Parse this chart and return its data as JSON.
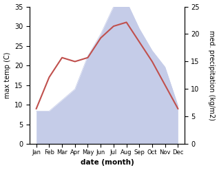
{
  "months": [
    "Jan",
    "Feb",
    "Mar",
    "Apr",
    "May",
    "Jun",
    "Jul",
    "Aug",
    "Sep",
    "Oct",
    "Nov",
    "Dec"
  ],
  "month_x": [
    0,
    1,
    2,
    3,
    4,
    5,
    6,
    7,
    8,
    9,
    10,
    11
  ],
  "temperature": [
    9,
    17,
    22,
    21,
    22,
    27,
    30,
    31,
    26,
    21,
    15,
    9
  ],
  "precipitation": [
    6,
    6,
    8,
    10,
    16,
    20,
    25,
    26,
    21,
    17,
    14,
    7
  ],
  "temp_color": "#c0504d",
  "precip_fill_color": "#c5cce8",
  "temp_ylim": [
    0,
    35
  ],
  "precip_ylim": [
    0,
    25
  ],
  "temp_yticks": [
    0,
    5,
    10,
    15,
    20,
    25,
    30,
    35
  ],
  "precip_yticks": [
    0,
    5,
    10,
    15,
    20,
    25
  ],
  "ylabel_left": "max temp (C)",
  "ylabel_right": "med. precipitation (kg/m2)",
  "xlabel": "date (month)",
  "background_color": "#ffffff"
}
